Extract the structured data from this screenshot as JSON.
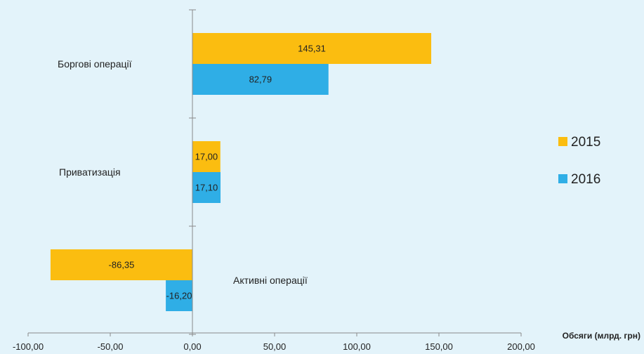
{
  "colors": {
    "background": "#e3f3fa",
    "series_2015": "#fbbd10",
    "series_2016": "#2faee6",
    "axis": "#8a8a8a"
  },
  "chart_data": {
    "type": "bar",
    "orientation": "horizontal",
    "categories": [
      "Боргові операції",
      "Приватизація",
      "Активні операції"
    ],
    "series": [
      {
        "name": "2015",
        "values": [
          145.31,
          17.0,
          -86.35
        ],
        "labels": [
          "145,31",
          "17,00",
          "-86,35"
        ]
      },
      {
        "name": "2016",
        "values": [
          82.79,
          17.1,
          -16.2
        ],
        "labels": [
          "82,79",
          "17,10",
          "-16,20"
        ]
      }
    ],
    "xlim": [
      -100,
      200
    ],
    "xticks": [
      -100,
      -50,
      0,
      50,
      100,
      150,
      200
    ],
    "xtick_labels": [
      "-100,00",
      "-50,00",
      "0,00",
      "50,00",
      "100,00",
      "150,00",
      "200,00"
    ],
    "xlabel": "Обсяги (млрд. грн)",
    "ylabel": "",
    "title": "",
    "grid": false,
    "legend_position": "right"
  }
}
